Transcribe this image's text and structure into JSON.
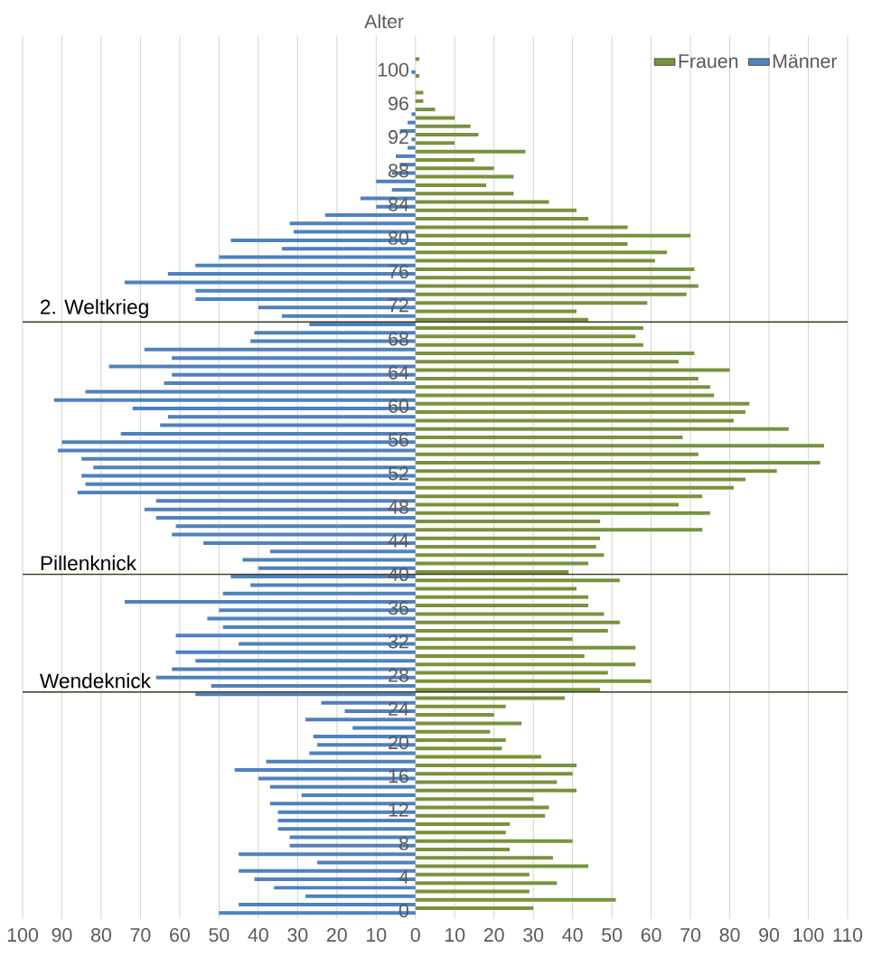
{
  "chart_data": {
    "type": "bar",
    "orientation": "horizontal",
    "ylabel": "Alter",
    "x": [
      0,
      1,
      2,
      3,
      4,
      5,
      6,
      7,
      8,
      9,
      10,
      11,
      12,
      13,
      14,
      15,
      16,
      17,
      18,
      19,
      20,
      21,
      22,
      23,
      24,
      25,
      26,
      27,
      28,
      29,
      30,
      31,
      32,
      33,
      34,
      35,
      36,
      37,
      38,
      39,
      40,
      41,
      42,
      43,
      44,
      45,
      46,
      47,
      48,
      49,
      50,
      51,
      52,
      53,
      54,
      55,
      56,
      57,
      58,
      59,
      60,
      61,
      62,
      63,
      64,
      65,
      66,
      67,
      68,
      69,
      70,
      71,
      72,
      73,
      74,
      75,
      76,
      77,
      78,
      79,
      80,
      81,
      82,
      83,
      84,
      85,
      86,
      87,
      88,
      89,
      90,
      91,
      92,
      93,
      94,
      95,
      96,
      97,
      98,
      99,
      100,
      101
    ],
    "series": [
      {
        "name": "Frauen",
        "color": "#77933c",
        "values": [
          30,
          51,
          29,
          36,
          29,
          44,
          35,
          24,
          40,
          23,
          24,
          33,
          34,
          30,
          41,
          36,
          40,
          41,
          32,
          22,
          23,
          19,
          27,
          20,
          23,
          38,
          47,
          60,
          49,
          56,
          43,
          56,
          40,
          49,
          52,
          48,
          44,
          44,
          41,
          52,
          39,
          44,
          48,
          46,
          47,
          73,
          47,
          75,
          67,
          73,
          81,
          84,
          92,
          103,
          72,
          104,
          68,
          95,
          81,
          84,
          85,
          76,
          75,
          72,
          80,
          67,
          71,
          58,
          56,
          58,
          44,
          41,
          59,
          69,
          72,
          70,
          71,
          61,
          64,
          54,
          70,
          54,
          44,
          41,
          34,
          25,
          18,
          25,
          20,
          15,
          28,
          10,
          16,
          14,
          10,
          5,
          2,
          2,
          null,
          1,
          null,
          1
        ]
      },
      {
        "name": "Männer",
        "color": "#4f81bd",
        "values": [
          -50,
          -45,
          -28,
          -36,
          -41,
          -45,
          -25,
          -45,
          -32,
          -32,
          -35,
          -35,
          -35,
          -37,
          -29,
          -37,
          -40,
          -46,
          -38,
          -27,
          -25,
          -26,
          -16,
          -28,
          -18,
          -24,
          -56,
          -52,
          -66,
          -62,
          -56,
          -61,
          -45,
          -61,
          -49,
          -53,
          -50,
          -74,
          -49,
          -42,
          -47,
          -40,
          -44,
          -37,
          -54,
          -62,
          -61,
          -66,
          -69,
          -66,
          -86,
          -84,
          -85,
          -82,
          -85,
          -91,
          -90,
          -75,
          -65,
          -63,
          -72,
          -92,
          -84,
          -64,
          -62,
          -78,
          -62,
          -69,
          -42,
          -41,
          -27,
          -34,
          -40,
          -56,
          -56,
          -74,
          -63,
          -56,
          -50,
          -34,
          -47,
          -31,
          -32,
          -23,
          -10,
          -14,
          -6,
          -10,
          -6,
          -4,
          -5,
          -2,
          -1,
          -4,
          -2,
          -1,
          null,
          null,
          null,
          null,
          -1,
          null
        ]
      }
    ],
    "xlim": [
      -100,
      110
    ],
    "xticks": [
      {
        "value": -100,
        "label": "100"
      },
      {
        "value": -90,
        "label": "90"
      },
      {
        "value": -80,
        "label": "80"
      },
      {
        "value": -70,
        "label": "70"
      },
      {
        "value": -60,
        "label": "60"
      },
      {
        "value": -50,
        "label": "50"
      },
      {
        "value": -40,
        "label": "40"
      },
      {
        "value": -30,
        "label": "30"
      },
      {
        "value": -20,
        "label": "20"
      },
      {
        "value": -10,
        "label": "10"
      },
      0,
      10,
      20,
      30,
      40,
      50,
      60,
      70,
      80,
      90,
      100,
      110
    ],
    "ylim": [
      -1,
      104
    ],
    "yticks": [
      0,
      4,
      8,
      12,
      16,
      20,
      24,
      28,
      32,
      36,
      40,
      44,
      48,
      52,
      56,
      60,
      64,
      68,
      72,
      76,
      80,
      84,
      88,
      92,
      96,
      100
    ],
    "ref_lines": [
      {
        "axis": "y",
        "value": 70,
        "label": "2. Weltkrieg",
        "color": "#403d24"
      },
      {
        "axis": "y",
        "value": 40,
        "label": "Pillenknick",
        "color": "#403d24"
      },
      {
        "axis": "y",
        "value": 26,
        "label": "Wendeknick",
        "color": "#403d24"
      }
    ],
    "grid": "x",
    "legend": "top right"
  }
}
